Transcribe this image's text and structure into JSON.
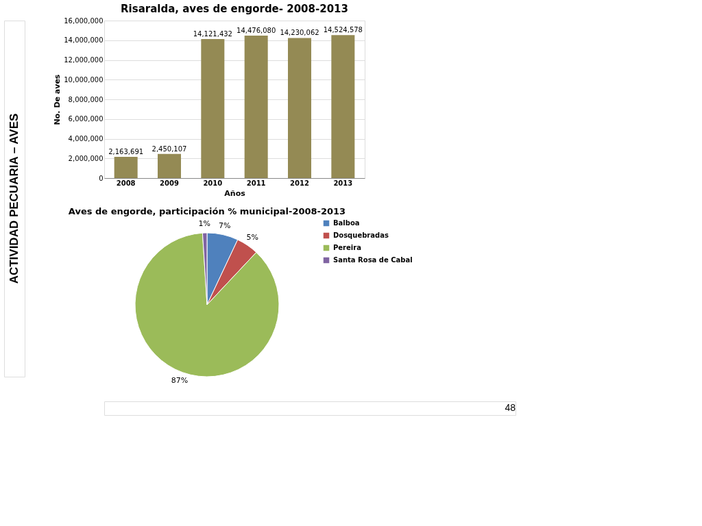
{
  "chart_data": [
    {
      "type": "bar",
      "title": "Risaralda, aves de engorde- 2008-2013",
      "xlabel": "Años",
      "ylabel": "No. De aves",
      "categories": [
        "2008",
        "2009",
        "2010",
        "2011",
        "2012",
        "2013"
      ],
      "values": [
        2163691,
        2450107,
        14121432,
        14476080,
        14230062,
        14524578
      ],
      "color": "#948a54",
      "ylim": [
        0,
        16000000
      ],
      "yticks": [
        0,
        {
          "value": 2000000,
          "label": "2,000,000"
        },
        {
          "value": 4000000,
          "label": "4,000,000"
        },
        {
          "value": 6000000,
          "label": "6,000,000"
        },
        {
          "value": 8000000,
          "label": "8,000,000"
        },
        {
          "value": 10000000,
          "label": "10,000,000"
        },
        {
          "value": 12000000,
          "label": "12,000,000"
        },
        {
          "value": 14000000,
          "label": "14,000,000"
        },
        {
          "value": 16000000,
          "label": "16,000,000"
        }
      ],
      "value_labels": [
        "2,163,691",
        "2,450,107",
        "14,121,432",
        "14,476,080",
        "14,230,062",
        "14,524,578"
      ],
      "grid": "y",
      "annotations": [
        "ACTIVIDAD PECUARIA – AVES",
        "48"
      ]
    },
    {
      "type": "pie",
      "title": "Aves de engorde, participación % municipal-2008-2013",
      "categories": [
        "Balboa",
        "Dosquebradas",
        "Pereira",
        "Santa Rosa de Cabal"
      ],
      "values": [
        7,
        5,
        87,
        1
      ],
      "colors": [
        "#4f81bd",
        "#c0504d",
        "#9bbb59",
        "#8064a2"
      ],
      "value_labels": [
        "7%",
        "5%",
        "87%",
        "1%"
      ],
      "legend": "right"
    }
  ]
}
